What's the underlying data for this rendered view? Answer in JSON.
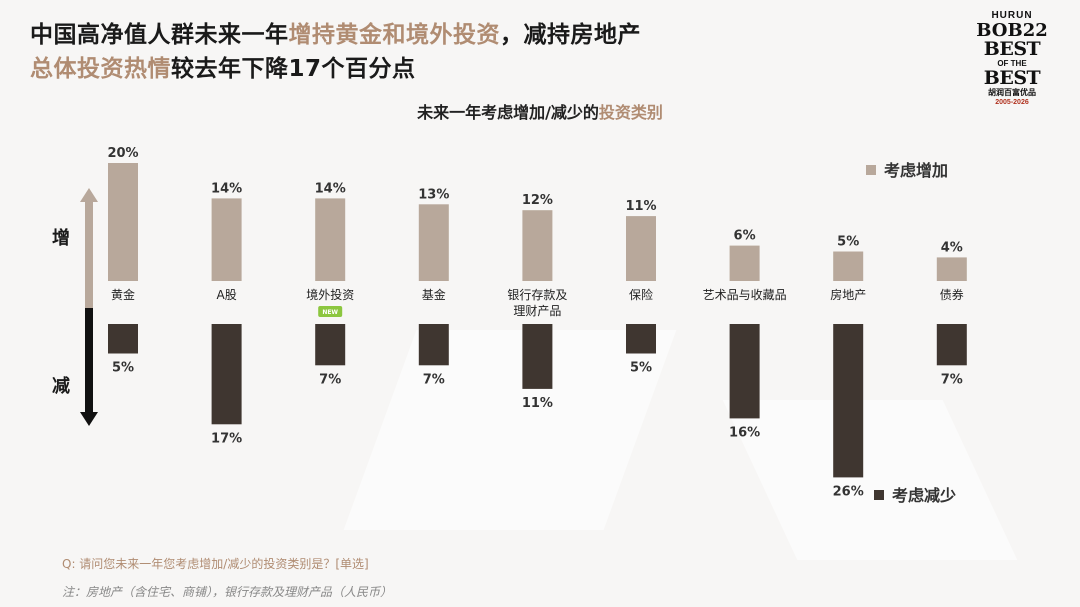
{
  "title": {
    "line1_a": "中国高净值人群未来一年",
    "line1_b": "增持黄金和境外投资",
    "line1_c": "，减持房地产",
    "line2_a": "总体投资热情",
    "line2_b": "较去年下降17个百分点"
  },
  "logo": {
    "line1": "HURUN",
    "line2": "BOB22",
    "line3": "BEST",
    "line4": "OF THE",
    "line5": "BEST",
    "line6": "胡润百富优品",
    "line7": "2005-2026"
  },
  "subtitle": {
    "a": "未来一年考虑增加/减少的",
    "b": "投资类别"
  },
  "legend": {
    "increase": "考虑增加",
    "decrease": "考虑减少"
  },
  "side_labels": {
    "up": "增",
    "down": "减"
  },
  "badge": "NEW",
  "footnote": {
    "question": "Q: 请问您未来一年您考虑增加/减少的投资类别是？[单选]",
    "note": "注：房地产（含住宅、商铺），银行存款及理财产品（人民币）"
  },
  "colors": {
    "increase": "#b8a89b",
    "decrease": "#3f3630",
    "highlight": "#b08c72",
    "badge": "#8cc63f"
  },
  "chart_data": {
    "type": "bar",
    "categories": [
      "黄金",
      "A股",
      "境外投资",
      "基金",
      "银行存款及理财产品",
      "保险",
      "艺术品与收藏品",
      "房地产",
      "债券"
    ],
    "category_lines": [
      [
        "黄金"
      ],
      [
        "A股"
      ],
      [
        "境外投资"
      ],
      [
        "基金"
      ],
      [
        "银行存款及",
        "理财产品"
      ],
      [
        "保险"
      ],
      [
        "艺术品与收藏品"
      ],
      [
        "房地产"
      ],
      [
        "债券"
      ]
    ],
    "badge_category": "境外投资",
    "series": [
      {
        "name": "考虑增加",
        "values": [
          20,
          14,
          14,
          13,
          12,
          11,
          6,
          5,
          4
        ]
      },
      {
        "name": "考虑减少",
        "values": [
          5,
          17,
          7,
          7,
          11,
          5,
          16,
          26,
          7
        ]
      }
    ],
    "unit": "%",
    "legend": [
      "top-right",
      "bottom-right"
    ]
  }
}
